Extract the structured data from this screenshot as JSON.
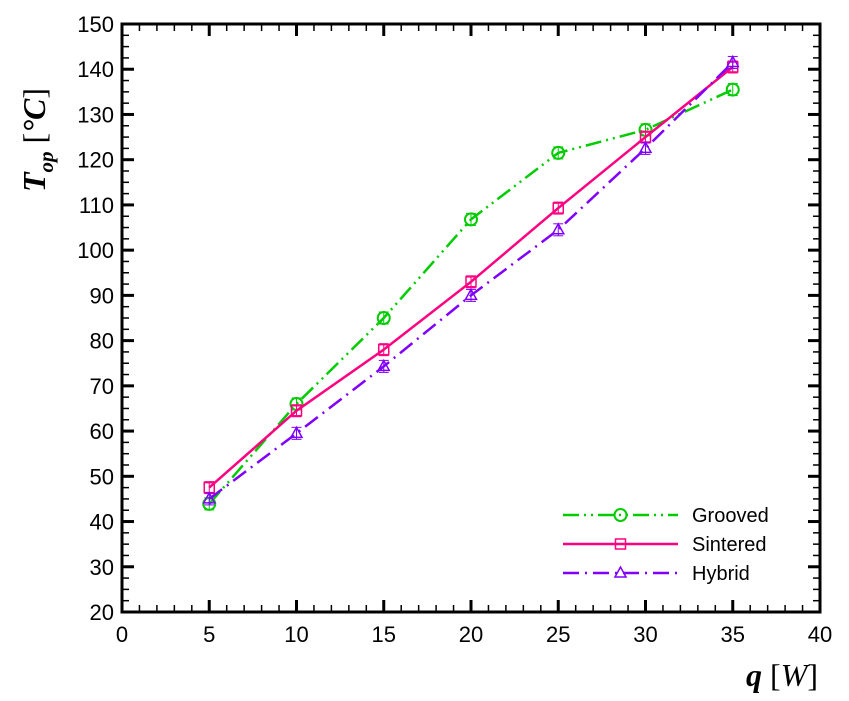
{
  "chart_data": {
    "type": "line",
    "title": "",
    "xlabel": "q [W]",
    "ylabel": "T_op [°C]",
    "xlabel_parts": {
      "var": "q",
      "unit_open": " [",
      "unit": "W",
      "unit_close": "]"
    },
    "ylabel_parts": {
      "var": "T",
      "sub": "op",
      "unit_open": " [",
      "unit": "°C",
      "unit_close": "]"
    },
    "xlim": [
      0,
      40
    ],
    "ylim": [
      20,
      150
    ],
    "xticks": [
      0,
      5,
      10,
      15,
      20,
      25,
      30,
      35,
      40
    ],
    "yticks": [
      20,
      30,
      40,
      50,
      60,
      70,
      80,
      90,
      100,
      110,
      120,
      130,
      140,
      150
    ],
    "x_minor_step": 1,
    "y_minor_step": 2.5,
    "grid": false,
    "legend_position": "lower right",
    "x": [
      5,
      10,
      15,
      20,
      25,
      30,
      35
    ],
    "series": [
      {
        "name": "Grooved",
        "color": "#00CC00",
        "marker": "circle",
        "dash": "dash-dot-dot",
        "values": [
          43.9,
          66.0,
          85.0,
          106.8,
          121.5,
          126.6,
          135.5
        ]
      },
      {
        "name": "Sintered",
        "color": "#FF0080",
        "marker": "square",
        "dash": "solid",
        "values": [
          47.5,
          64.5,
          78.0,
          93.0,
          109.3,
          125.0,
          140.5
        ]
      },
      {
        "name": "Hybrid",
        "color": "#8000FF",
        "marker": "triangle",
        "dash": "dash-dot",
        "values": [
          45.0,
          59.5,
          74.3,
          90.0,
          104.5,
          122.5,
          141.5
        ]
      }
    ]
  }
}
